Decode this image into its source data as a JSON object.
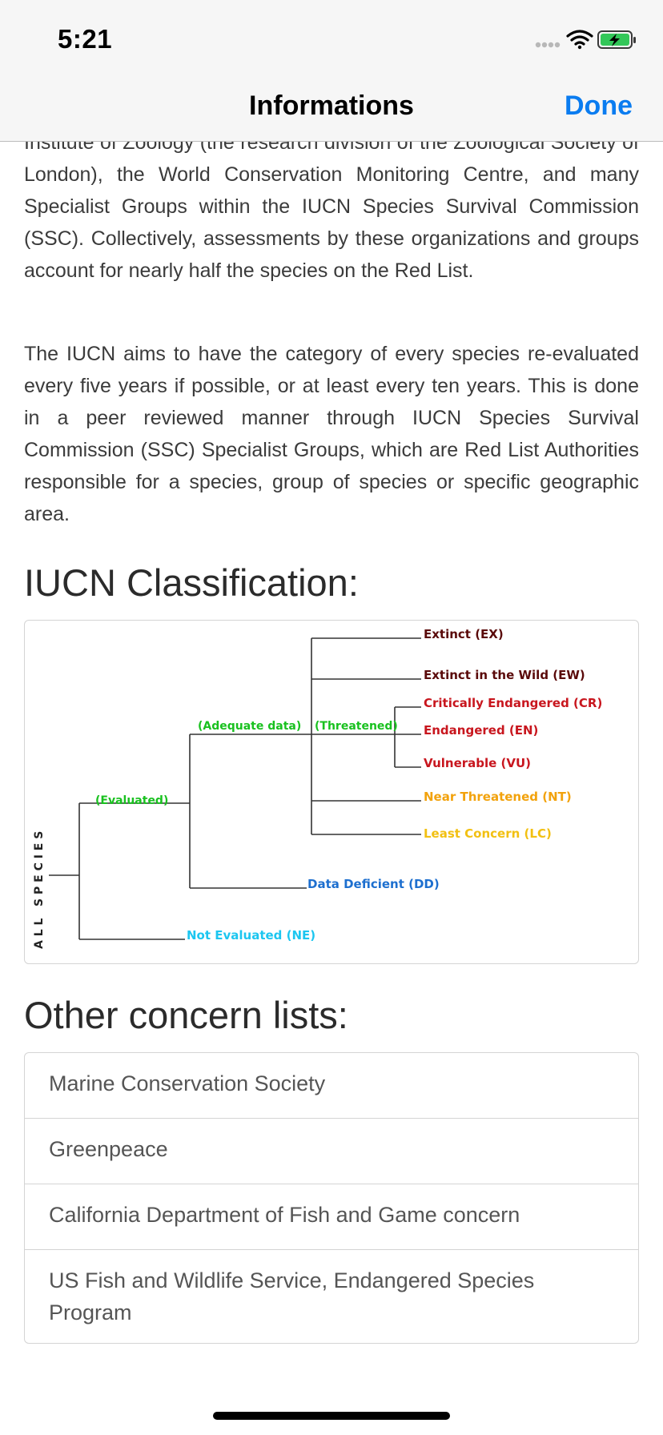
{
  "status": {
    "time": "5:21",
    "icons": [
      "cellular-signal-icon",
      "wifi-icon",
      "battery-charging-icon"
    ]
  },
  "nav": {
    "title": "Informations",
    "done_label": "Done"
  },
  "paragraphs": [
    "Institute of Zoology (the research division of the Zoological Society of London), the World Conservation Monitoring Centre, and many Specialist Groups within the IUCN Species Survival Commission (SSC). Collectively, assessments by these organizations and groups account for nearly half the species on the Red List.",
    "The IUCN aims to have the category of every species re-evaluated every five years if possible, or at least every ten years. This is done in a peer reviewed manner through IUCN Species Survival Commission (SSC) Specialist Groups, which are Red List Authorities responsible for a species, group of species or specific geographic area."
  ],
  "sections": {
    "classification_title": "IUCN Classification:",
    "other_lists_title": "Other concern lists:"
  },
  "diagram": {
    "vertical_label": "A L L   S P E C I E S",
    "branch_labels": {
      "evaluated": "(Evaluated)",
      "adequate": "(Adequate data)",
      "threatened": "(Threatened)"
    },
    "leaves": {
      "ex": "Extinct (EX)",
      "ew": "Extinct in the Wild (EW)",
      "cr": "Critically Endangered (CR)",
      "en": "Endangered (EN)",
      "vu": "Vulnerable (VU)",
      "nt": "Near Threatened (NT)",
      "lc": "Least Concern (LC)",
      "dd": "Data Deficient (DD)",
      "ne": "Not Evaluated (NE)"
    },
    "colors": {
      "extinct": "#5a0a0a",
      "threatened": "#c8161e",
      "near": "#f2a20c",
      "deficient": "#1d6fcf",
      "not_evaluated": "#1cc6f0",
      "branch": "#19c11f"
    }
  },
  "other_lists": [
    "Marine Conservation Society",
    "Greenpeace",
    "California Department of Fish and Game concern",
    "US Fish and Wildlife Service, Endangered Species Program"
  ]
}
